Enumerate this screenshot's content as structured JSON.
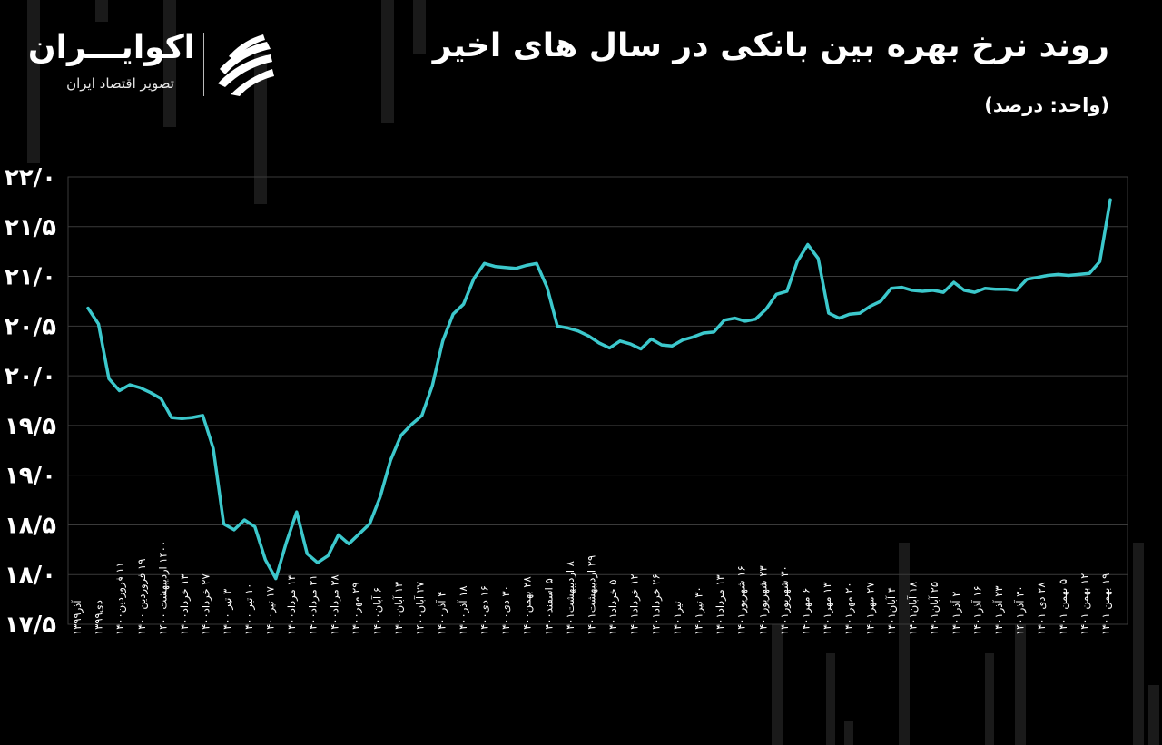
{
  "brand": {
    "name": "اکوایـــران",
    "tagline": "تصویر اقتصاد ایران",
    "logo_icon": "ecoiran-swoosh-icon"
  },
  "colors": {
    "background": "#000000",
    "line": "#3cc8cc",
    "grid": "#3a3a3a",
    "text": "#ffffff"
  },
  "chart_data": {
    "type": "line",
    "title": "روند نرخ بهره بین بانکی در سال های اخیر",
    "subtitle": "(واحد: درصد)",
    "ylim": [
      17.5,
      22.0
    ],
    "y_ticks": [
      "۱۷/۵",
      "۱۸/۰",
      "۱۸/۵",
      "۱۹/۰",
      "۱۹/۵",
      "۲۰/۰",
      "۲۰/۵",
      "۲۱/۰",
      "۲۱/۵",
      "۲۲/۰"
    ],
    "grid": true,
    "x_labels": [
      "آذر۱۳۹۹",
      "دی۱۳۹۹",
      "۱۱ فروردین۱۴۰۰",
      "۱۹ فروردین ۱۴۰۰",
      "۱۴۰۰ اردیبهشت ۱۴۰۰",
      "۱۳ خرداد۱۴۰۰",
      "۲۷ خرداد۱۴۰۰",
      "۳ تیر ۱۴۰۰",
      "۱۰ تیر ۱۴۰۰",
      "۱۷ تیر۱۴۰۰",
      "۱۴ مرداد۱۴۰۰",
      "۲۱ مرداد۱۴۰۰",
      "۲۸ مرداد۱۴۰۰",
      "۲۹ مهر۱۴۰۰",
      "۶ آبان۱۴۰۰",
      "۱۳ آبان۱۴۰۰",
      "۲۷ آبان۱۴۰۰",
      "۴ آذر۱۴۰۰",
      "۱۸ آذر۱۴۰۰",
      "۱۶ دی۱۴۰۰",
      "۳۰ دی۱۴۰۰",
      "۲۸ بهمن۱۴۰۰",
      "۵ اسفند۱۴۰۰",
      "۸ اردیبهشت۱۴۰۱",
      "۲۹ اردیبهشت۱۴۰۱",
      "۵ خرداد۱۴۰۱",
      "۱۲ خرداد۱۴۰۱",
      "۲۶ خرداد۱۴۰۱",
      "تیر۱۴۰۱",
      "۳۰ تیر۱۴۰۱",
      "۱۳ مرداد۱۴۰۱",
      "۱۶ شهریور۱۴۰۱",
      "۲۳ شهریور۱۴۰۱",
      "۳۰ شهریور۱۴۰۱",
      "۶ مهر۱۴۰۱",
      "۱۳ مهر۱۴۰۱",
      "۲۰ مهر۱۴۰۱",
      "۲۷ مهر۱۴۰۱",
      "۴ آبان۱۴۰۱",
      "۱۸ آبان۱۴۰۱",
      "۲۵ آبان۱۴۰۱",
      "۲ آذر۱۴۰۱",
      "۱۶ آذر۱۴۰۱",
      "۲۳ آذر۱۴۰۱",
      "۳۰ آذر۱۴۰۱",
      "۲۸ دی ۱۴۰۱",
      "۵ بهمن ۱۴۰۱",
      "۱۲ بهمن ۱۴۰۱",
      "۱۹ بهمن ۱۴۰۱"
    ],
    "series": [
      {
        "values": [
          20.68,
          20.52,
          19.97,
          19.85,
          19.91,
          19.88,
          19.83,
          19.77,
          19.58,
          19.57,
          19.58,
          19.6,
          19.27,
          18.51,
          18.45,
          18.55,
          18.48,
          18.15,
          17.96,
          18.32,
          18.63,
          18.21,
          18.12,
          18.19,
          18.4,
          18.31,
          18.41,
          18.51,
          18.78,
          19.15,
          19.4,
          19.51,
          19.6,
          19.9,
          20.35,
          20.62,
          20.72,
          20.98,
          21.13,
          21.1,
          21.09,
          21.08,
          21.11,
          21.13,
          20.89,
          20.5,
          20.48,
          20.45,
          20.4,
          20.33,
          20.28,
          20.35,
          20.32,
          20.27,
          20.37,
          20.31,
          20.3,
          20.36,
          20.39,
          20.43,
          20.44,
          20.56,
          20.58,
          20.55,
          20.57,
          20.67,
          20.82,
          20.85,
          21.15,
          21.32,
          21.18,
          20.63,
          20.58,
          20.62,
          20.63,
          20.7,
          20.75,
          20.88,
          20.89,
          20.86,
          20.85,
          20.86,
          20.84,
          20.94,
          20.86,
          20.84,
          20.88,
          20.87,
          20.87,
          20.86,
          20.97,
          20.99,
          21.01,
          21.02,
          21.01,
          21.02,
          21.03,
          21.15,
          21.77
        ]
      }
    ]
  }
}
